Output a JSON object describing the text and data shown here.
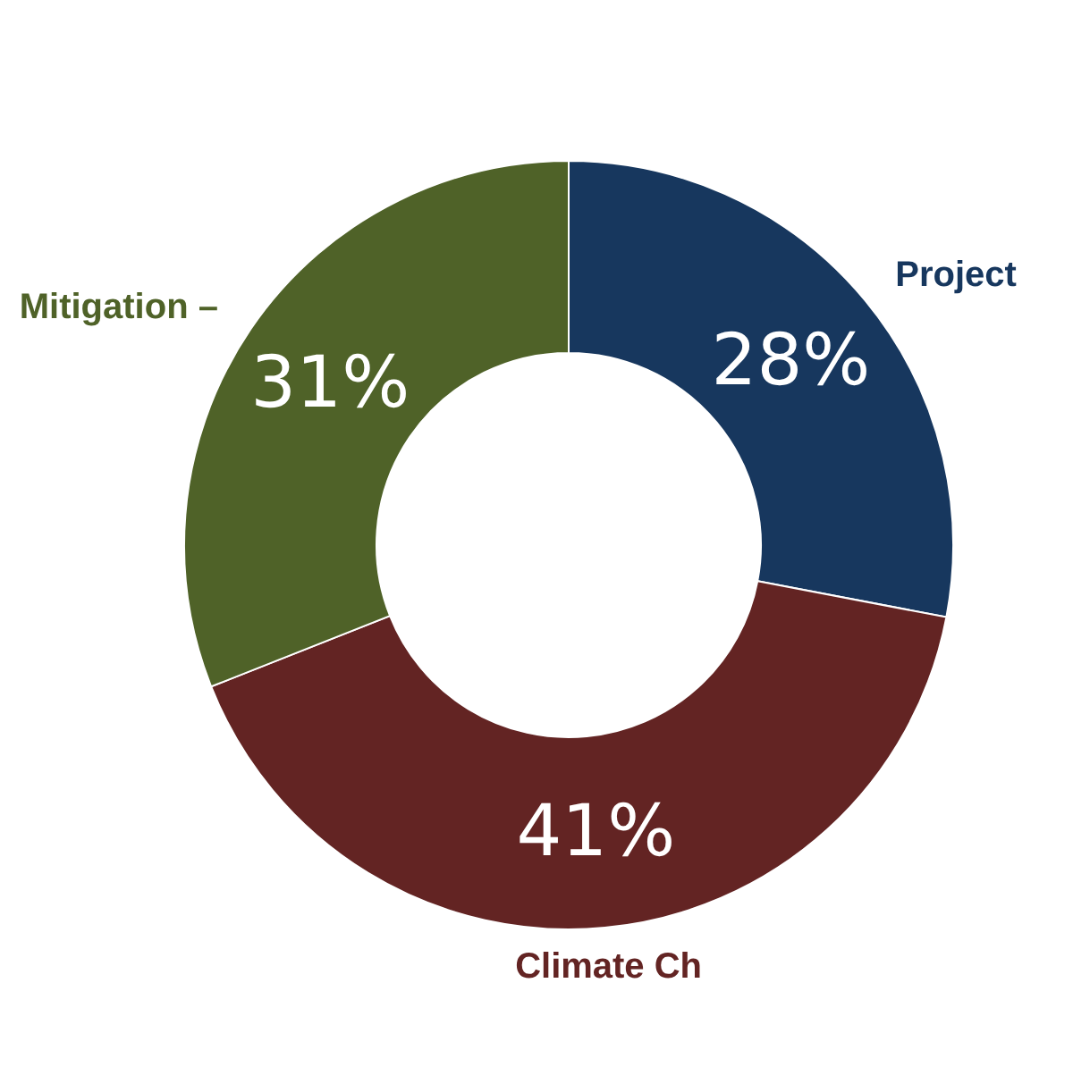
{
  "chart_data": {
    "type": "donut",
    "categories": [
      "Project",
      "Climate Ch",
      "Mitigation –"
    ],
    "values": [
      28,
      41,
      31
    ],
    "colors": [
      "#17375e",
      "#632423",
      "#4f6228"
    ],
    "value_labels": [
      "28%",
      "41%",
      "31%"
    ],
    "legend": false
  }
}
